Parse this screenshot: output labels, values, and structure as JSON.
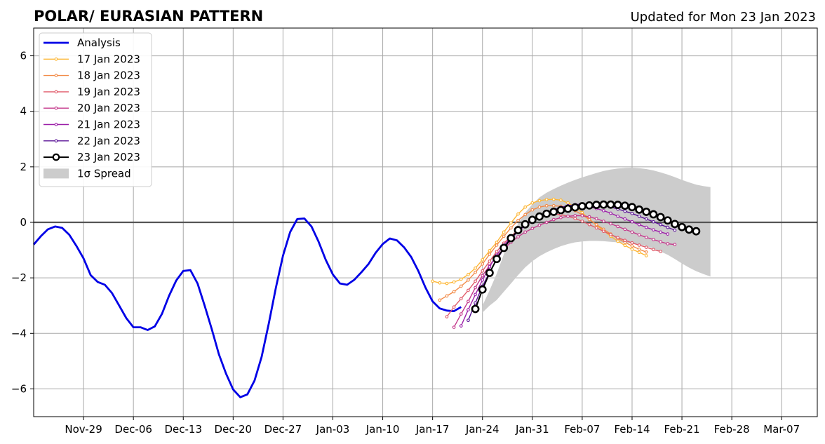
{
  "title": "POLAR/ EURASIAN  PATTERN",
  "updated": "Updated for Mon 23 Jan 2023",
  "colors": {
    "analysis": "#0000e6",
    "spread": "#cccccc",
    "grid": "#a8a8a8",
    "zero_line": "#555555"
  },
  "chart_data": {
    "type": "line",
    "title": "POLAR/ EURASIAN  PATTERN",
    "subtitle": "Updated for Mon 23 Jan 2023",
    "xlabel": "",
    "ylabel": "",
    "x_axis": "days relative to 2022-11-22",
    "xlim": [
      0,
      110
    ],
    "ylim": [
      -7,
      7
    ],
    "grid": true,
    "legend_position": "top-left",
    "x_ticks": [
      {
        "x": 7,
        "label": "Nov-29"
      },
      {
        "x": 14,
        "label": "Dec-06"
      },
      {
        "x": 21,
        "label": "Dec-13"
      },
      {
        "x": 28,
        "label": "Dec-20"
      },
      {
        "x": 35,
        "label": "Dec-27"
      },
      {
        "x": 42,
        "label": "Jan-03"
      },
      {
        "x": 49,
        "label": "Jan-10"
      },
      {
        "x": 56,
        "label": "Jan-17"
      },
      {
        "x": 63,
        "label": "Jan-24"
      },
      {
        "x": 70,
        "label": "Jan-31"
      },
      {
        "x": 77,
        "label": "Feb-07"
      },
      {
        "x": 84,
        "label": "Feb-14"
      },
      {
        "x": 91,
        "label": "Feb-21"
      },
      {
        "x": 98,
        "label": "Feb-28"
      },
      {
        "x": 105,
        "label": "Mar-07"
      }
    ],
    "y_ticks": [
      {
        "y": -6,
        "label": "−6"
      },
      {
        "y": -4,
        "label": "−4"
      },
      {
        "y": -2,
        "label": "−2"
      },
      {
        "y": 0,
        "label": "0"
      },
      {
        "y": 2,
        "label": "2"
      },
      {
        "y": 4,
        "label": "4"
      },
      {
        "y": 6,
        "label": "6"
      }
    ],
    "analysis": {
      "name": "Analysis",
      "color": "#0000e6",
      "start_x": 0,
      "values": [
        -0.8,
        -0.5,
        -0.25,
        -0.15,
        -0.2,
        -0.45,
        -0.85,
        -1.3,
        -1.9,
        -2.15,
        -2.25,
        -2.55,
        -3.0,
        -3.45,
        -3.78,
        -3.78,
        -3.88,
        -3.75,
        -3.3,
        -2.65,
        -2.1,
        -1.75,
        -1.72,
        -2.2,
        -3.0,
        -3.85,
        -4.75,
        -5.45,
        -6.02,
        -6.3,
        -6.2,
        -5.7,
        -4.85,
        -3.65,
        -2.35,
        -1.2,
        -0.35,
        0.12,
        0.14,
        -0.15,
        -0.7,
        -1.35,
        -1.88,
        -2.2,
        -2.25,
        -2.07,
        -1.8,
        -1.5,
        -1.1,
        -0.78,
        -0.58,
        -0.65,
        -0.9,
        -1.25,
        -1.75,
        -2.35,
        -2.85,
        -3.1,
        -3.18,
        -3.2,
        -3.05
      ]
    },
    "spread": {
      "name": "1σ Spread",
      "x": [
        63,
        64,
        65,
        66,
        67,
        68,
        69,
        70,
        71,
        72,
        73,
        74,
        75,
        76,
        77,
        78,
        79,
        80,
        81,
        82,
        83,
        84,
        85,
        86,
        87,
        88,
        89,
        90,
        91,
        92,
        93,
        94,
        95
      ],
      "upper": [
        -3.0,
        -2.45,
        -1.85,
        -1.15,
        -0.55,
        -0.05,
        0.35,
        0.65,
        0.9,
        1.07,
        1.2,
        1.32,
        1.43,
        1.53,
        1.62,
        1.7,
        1.78,
        1.85,
        1.9,
        1.94,
        1.96,
        1.97,
        1.95,
        1.92,
        1.87,
        1.8,
        1.72,
        1.63,
        1.53,
        1.44,
        1.36,
        1.31,
        1.27
      ],
      "lower": [
        -3.25,
        -3.0,
        -2.8,
        -2.5,
        -2.2,
        -1.9,
        -1.62,
        -1.4,
        -1.22,
        -1.08,
        -0.96,
        -0.86,
        -0.78,
        -0.72,
        -0.69,
        -0.67,
        -0.67,
        -0.68,
        -0.7,
        -0.72,
        -0.74,
        -0.76,
        -0.8,
        -0.86,
        -0.94,
        -1.05,
        -1.17,
        -1.32,
        -1.48,
        -1.63,
        -1.76,
        -1.86,
        -1.95
      ]
    },
    "forecasts": [
      {
        "name": "17 Jan 2023",
        "color": "#fdb736",
        "start_x": 56,
        "values": [
          -2.12,
          -2.18,
          -2.2,
          -2.15,
          -2.05,
          -1.88,
          -1.65,
          -1.35,
          -1.02,
          -0.72,
          -0.35,
          -0.02,
          0.3,
          0.55,
          0.7,
          0.78,
          0.82,
          0.83,
          0.8,
          0.7,
          0.55,
          0.35,
          0.12,
          -0.1,
          -0.3,
          -0.5,
          -0.68,
          -0.83,
          -0.97,
          -1.08,
          -1.2
        ]
      },
      {
        "name": "18 Jan 2023",
        "color": "#f28a47",
        "start_x": 57,
        "values": [
          -2.8,
          -2.65,
          -2.5,
          -2.3,
          -2.08,
          -1.8,
          -1.5,
          -1.15,
          -0.82,
          -0.5,
          -0.2,
          0.07,
          0.28,
          0.45,
          0.55,
          0.6,
          0.6,
          0.58,
          0.52,
          0.42,
          0.27,
          0.1,
          -0.08,
          -0.25,
          -0.42,
          -0.58,
          -0.72,
          -0.85,
          -0.97,
          -1.07
        ]
      },
      {
        "name": "19 Jan 2023",
        "color": "#e05b6a",
        "start_x": 58,
        "values": [
          -3.4,
          -3.05,
          -2.75,
          -2.45,
          -2.12,
          -1.75,
          -1.4,
          -1.05,
          -0.75,
          -0.5,
          -0.28,
          -0.08,
          0.08,
          0.2,
          0.28,
          0.3,
          0.28,
          0.22,
          0.14,
          0.04,
          -0.08,
          -0.2,
          -0.32,
          -0.44,
          -0.55,
          -0.65,
          -0.74,
          -0.82,
          -0.9,
          -0.98,
          -1.05
        ]
      },
      {
        "name": "20 Jan 2023",
        "color": "#c43a8c",
        "start_x": 59,
        "values": [
          -3.78,
          -3.3,
          -2.85,
          -2.35,
          -1.92,
          -1.55,
          -1.22,
          -0.95,
          -0.72,
          -0.52,
          -0.35,
          -0.22,
          -0.1,
          0.0,
          0.1,
          0.17,
          0.22,
          0.24,
          0.24,
          0.2,
          0.13,
          0.04,
          -0.05,
          -0.15,
          -0.25,
          -0.35,
          -0.45,
          -0.54,
          -0.62,
          -0.7,
          -0.77,
          -0.8
        ]
      },
      {
        "name": "21 Jan 2023",
        "color": "#9c1fa8",
        "start_x": 60,
        "values": [
          -3.73,
          -3.15,
          -2.6,
          -2.08,
          -1.6,
          -1.18,
          -0.82,
          -0.55,
          -0.32,
          -0.12,
          0.05,
          0.2,
          0.32,
          0.42,
          0.5,
          0.56,
          0.58,
          0.58,
          0.55,
          0.5,
          0.42,
          0.33,
          0.22,
          0.12,
          0.02,
          -0.08,
          -0.18,
          -0.27,
          -0.35,
          -0.42
        ]
      },
      {
        "name": "22 Jan 2023",
        "color": "#5b1497",
        "start_x": 61,
        "values": [
          -3.53,
          -2.9,
          -2.3,
          -1.8,
          -1.35,
          -0.95,
          -0.6,
          -0.32,
          -0.1,
          0.08,
          0.22,
          0.34,
          0.45,
          0.54,
          0.6,
          0.64,
          0.66,
          0.65,
          0.63,
          0.6,
          0.55,
          0.48,
          0.4,
          0.32,
          0.22,
          0.12,
          0.02,
          -0.08,
          -0.18,
          -0.28
        ]
      },
      {
        "name": "23 Jan 2023",
        "color": "#000000",
        "start_x": 62,
        "marker": "open-circle",
        "values": [
          -3.12,
          -2.42,
          -1.82,
          -1.32,
          -0.92,
          -0.57,
          -0.28,
          -0.07,
          0.09,
          0.21,
          0.31,
          0.38,
          0.44,
          0.49,
          0.54,
          0.58,
          0.61,
          0.63,
          0.64,
          0.64,
          0.63,
          0.6,
          0.55,
          0.46,
          0.38,
          0.29,
          0.19,
          0.07,
          -0.06,
          -0.17,
          -0.26,
          -0.32
        ]
      }
    ]
  }
}
